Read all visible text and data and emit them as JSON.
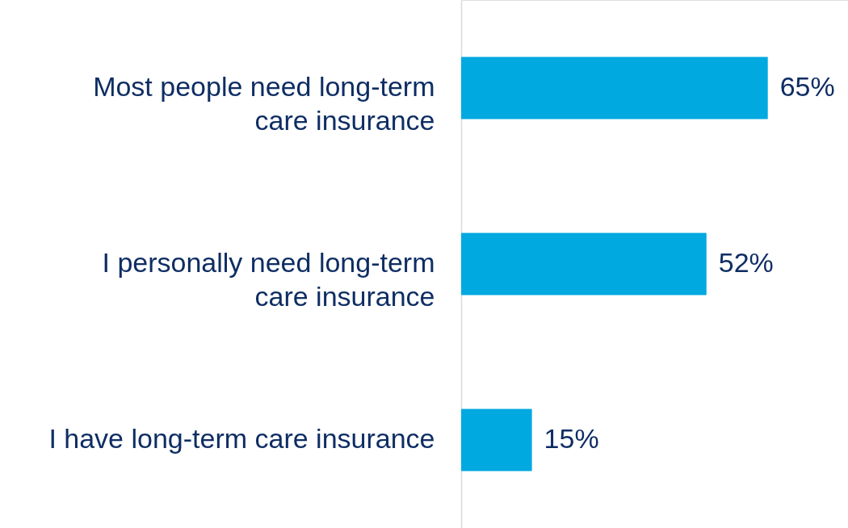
{
  "chart_data": {
    "type": "bar",
    "orientation": "horizontal",
    "categories": [
      "Most people need long-term care insurance",
      "I personally need long-term care insurance",
      "I have long-term care insurance"
    ],
    "values": [
      65,
      52,
      15
    ],
    "value_labels": [
      "65%",
      "52%",
      "15%"
    ],
    "color": "#00a9e0",
    "xlim": [
      0,
      82
    ],
    "tick_labels": "y",
    "grid": false
  }
}
